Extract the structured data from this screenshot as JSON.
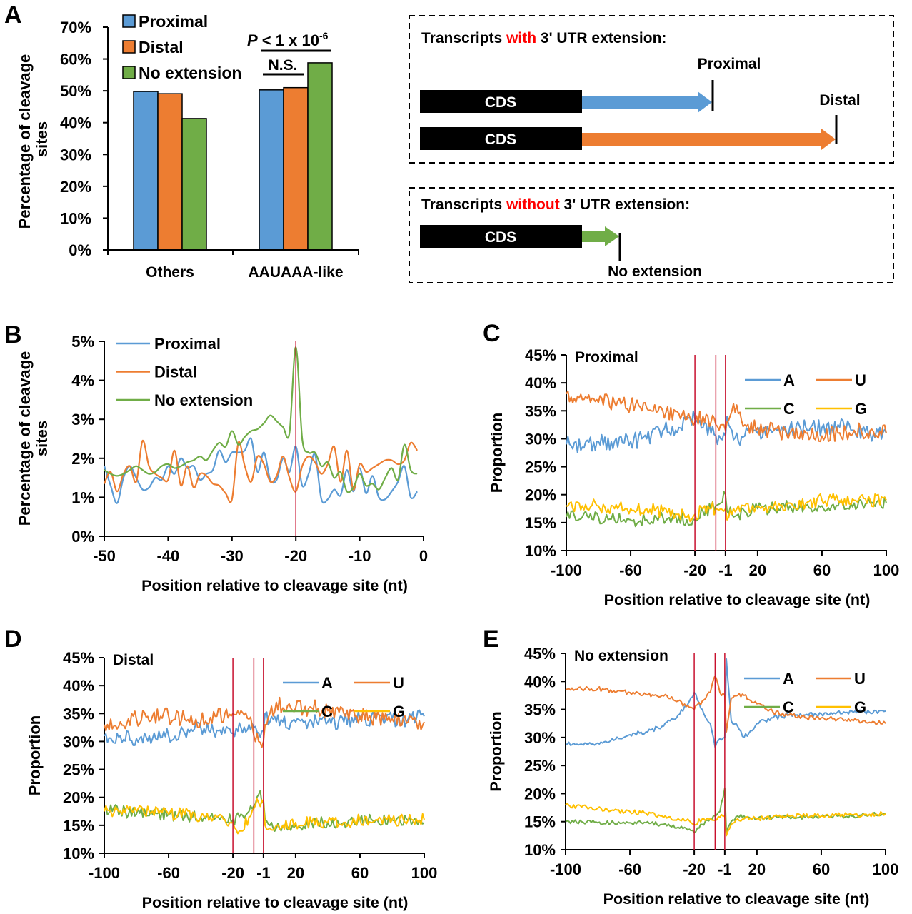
{
  "colors": {
    "blue": "#5b9bd5",
    "orange": "#ed7d31",
    "green": "#70ad47",
    "yellow": "#ffc000",
    "marker_red": "#c8102e",
    "highlight_red": "#ff0000",
    "cds_black": "#000000"
  },
  "chart_data": [
    {
      "panel": "A",
      "type": "bar",
      "title": "",
      "xlabel": "",
      "ylabel": "Percentage of cleavage sites",
      "ylim": [
        0,
        70
      ],
      "yticks": [
        "0%",
        "10%",
        "20%",
        "30%",
        "40%",
        "50%",
        "60%",
        "70%"
      ],
      "categories": [
        "Others",
        "AAUAAA-like"
      ],
      "series": [
        {
          "name": "Proximal",
          "color": "blue",
          "values": [
            49.8,
            50.3
          ]
        },
        {
          "name": "Distal",
          "color": "orange",
          "values": [
            49.1,
            51.0
          ]
        },
        {
          "name": "No extension",
          "color": "green",
          "values": [
            41.3,
            58.8
          ]
        }
      ],
      "legend": "top-left",
      "annotations": [
        {
          "text": "N.S.",
          "category": "AAUAAA-like",
          "between": [
            "Proximal",
            "Distal"
          ]
        },
        {
          "text_italic": "P",
          "text": " < 1 x 10",
          "superscript": "-6",
          "category": "AAUAAA-like",
          "between": [
            "Proximal",
            "No extension"
          ]
        }
      ]
    },
    {
      "panel": "B",
      "type": "line",
      "xlabel": "Position relative to cleavage site (nt)",
      "ylabel": "Percentage of cleavage sites",
      "xlim": [
        -50,
        0
      ],
      "ylim": [
        0,
        5
      ],
      "xticks": [
        "-50",
        "-40",
        "-30",
        "-20",
        "-10",
        "0"
      ],
      "yticks": [
        "0%",
        "1%",
        "2%",
        "3%",
        "4%",
        "5%"
      ],
      "marker_lines": [
        -20
      ],
      "legend": "top-left",
      "x_start": -50,
      "series": [
        {
          "name": "Proximal",
          "color": "blue",
          "values": [
            1.8,
            1.3,
            0.85,
            1.5,
            1.8,
            1.5,
            1.2,
            1.25,
            1.5,
            1.45,
            1.8,
            1.6,
            2.0,
            1.75,
            1.8,
            1.45,
            1.6,
            1.7,
            2.2,
            1.9,
            2.15,
            2.15,
            2.2,
            2.5,
            1.65,
            2.15,
            1.45,
            1.45,
            2.0,
            1.65,
            2.3,
            1.3,
            1.6,
            2.1,
            0.95,
            0.95,
            1.2,
            1.05,
            1.7,
            1.15,
            1.75,
            1.1,
            1.55,
            1.0,
            0.95,
            1.15,
            1.4,
            1.8,
            1.0,
            1.15
          ]
        },
        {
          "name": "Distal",
          "color": "orange",
          "values": [
            1.35,
            1.65,
            1.15,
            1.6,
            1.8,
            1.4,
            2.45,
            1.8,
            1.6,
            1.5,
            1.45,
            2.2,
            1.3,
            1.8,
            1.25,
            1.6,
            1.55,
            1.35,
            1.3,
            1.1,
            0.95,
            2.4,
            1.8,
            1.4,
            2.05,
            1.85,
            1.4,
            1.55,
            2.05,
            1.5,
            1.15,
            1.8,
            2.05,
            1.9,
            1.6,
            1.85,
            2.3,
            1.4,
            2.2,
            1.2,
            1.85,
            1.65,
            1.75,
            1.85,
            1.95,
            1.95,
            1.85,
            1.95,
            2.4,
            2.2
          ]
        },
        {
          "name": "No extension",
          "color": "green",
          "values": [
            1.7,
            1.6,
            1.55,
            1.6,
            1.7,
            1.8,
            1.7,
            1.6,
            1.65,
            1.8,
            1.85,
            1.75,
            1.8,
            1.9,
            1.95,
            2.05,
            1.95,
            2.2,
            2.4,
            2.3,
            2.7,
            2.35,
            2.55,
            2.7,
            2.75,
            2.9,
            3.1,
            2.95,
            2.8,
            2.65,
            4.85,
            2.5,
            2.15,
            2.15,
            1.8,
            1.9,
            1.5,
            1.65,
            1.15,
            1.25,
            1.6,
            1.3,
            1.35,
            1.2,
            1.5,
            1.75,
            1.45,
            2.35,
            1.7,
            1.6
          ]
        }
      ]
    },
    {
      "panel": "C",
      "type": "line",
      "title": "Proximal",
      "xlabel": "Position relative to cleavage site (nt)",
      "ylabel": "Proportion",
      "xlim": [
        -100,
        100
      ],
      "ylim": [
        10,
        45
      ],
      "xticks": [
        "-100",
        "-60",
        "-20",
        "-1",
        "20",
        "60",
        "100"
      ],
      "yticks": [
        "10%",
        "15%",
        "20%",
        "25%",
        "30%",
        "35%",
        "40%",
        "45%"
      ],
      "marker_lines": [
        -20,
        -7,
        -1
      ],
      "legend": "top-right",
      "anchor_positions": [
        -100,
        -90,
        -80,
        -70,
        -60,
        -50,
        -40,
        -30,
        -25,
        -20,
        -15,
        -10,
        -7,
        -4,
        -1,
        1,
        4,
        8,
        12,
        20,
        30,
        40,
        50,
        60,
        70,
        80,
        90,
        100
      ],
      "series": [
        {
          "name": "A",
          "color": "blue",
          "noise": 1.5,
          "values": [
            29,
            28.5,
            29.5,
            29.5,
            29.5,
            30,
            31.5,
            32,
            34,
            33.5,
            32,
            31,
            30.5,
            30,
            30.5,
            34,
            31.5,
            29.5,
            30.5,
            31,
            31.5,
            32,
            32,
            32,
            32.5,
            31.5,
            31,
            31
          ]
        },
        {
          "name": "U",
          "color": "orange",
          "noise": 1.5,
          "values": [
            38,
            37,
            36.5,
            36.5,
            36,
            35.5,
            35,
            34.5,
            33.5,
            33,
            34,
            33,
            32.5,
            32.5,
            31.5,
            33,
            35,
            34.5,
            32.5,
            32,
            31.5,
            31,
            31,
            30.5,
            31,
            31.5,
            31.5,
            31
          ]
        },
        {
          "name": "C",
          "color": "green",
          "noise": 1.2,
          "values": [
            16,
            16,
            16,
            15.5,
            15.5,
            15.5,
            16,
            16,
            15.5,
            15.5,
            17,
            17.5,
            18,
            18.5,
            20,
            17,
            16.5,
            16.5,
            17,
            17.5,
            17.5,
            18,
            18,
            18,
            18,
            18.5,
            18.5,
            18.5
          ]
        },
        {
          "name": "G",
          "color": "yellow",
          "noise": 1.2,
          "values": [
            18,
            18,
            18,
            17.5,
            17.5,
            17.5,
            17,
            16.5,
            16,
            16.5,
            17.5,
            17.5,
            17.5,
            17.5,
            17.5,
            15.5,
            16.5,
            18,
            18,
            18,
            18,
            18.5,
            18.5,
            19,
            19,
            19,
            19,
            19
          ]
        }
      ]
    },
    {
      "panel": "D",
      "type": "line",
      "title": "Distal",
      "xlabel": "Position relative to cleavage site (nt)",
      "ylabel": "Proportion",
      "xlim": [
        -100,
        100
      ],
      "ylim": [
        10,
        45
      ],
      "xticks": [
        "-100",
        "-60",
        "-20",
        "-1",
        "20",
        "60",
        "100"
      ],
      "yticks": [
        "10%",
        "15%",
        "20%",
        "25%",
        "30%",
        "35%",
        "40%",
        "45%"
      ],
      "marker_lines": [
        -20,
        -7,
        -1
      ],
      "legend": "top-right",
      "anchor_positions": [
        -100,
        -90,
        -80,
        -70,
        -60,
        -50,
        -40,
        -30,
        -25,
        -20,
        -15,
        -10,
        -7,
        -4,
        -1,
        1,
        4,
        8,
        12,
        20,
        30,
        40,
        50,
        60,
        70,
        80,
        90,
        100
      ],
      "series": [
        {
          "name": "A",
          "color": "blue",
          "noise": 1.4,
          "values": [
            31,
            31,
            30.5,
            30.5,
            31,
            31.5,
            32.5,
            32,
            31.5,
            31.5,
            32.5,
            33,
            32.5,
            31.5,
            32,
            35,
            33.5,
            33.5,
            33.5,
            33.5,
            33.5,
            33.5,
            33.5,
            34,
            34,
            34,
            34,
            34.5
          ]
        },
        {
          "name": "U",
          "color": "orange",
          "noise": 1.5,
          "values": [
            33,
            33.5,
            34,
            34.5,
            34.5,
            34,
            33.5,
            34.5,
            35,
            35,
            35.5,
            34,
            31,
            30,
            30,
            33,
            35,
            37,
            36,
            36,
            36,
            35.5,
            35,
            34.5,
            34,
            34,
            33.5,
            33.5
          ]
        },
        {
          "name": "C",
          "color": "green",
          "noise": 1.1,
          "values": [
            18,
            17.5,
            17,
            17,
            17,
            16.5,
            16.5,
            16.5,
            16,
            16,
            17,
            17.5,
            18.5,
            20.5,
            19.5,
            16,
            15,
            14.5,
            15,
            15,
            15.5,
            15.5,
            15.5,
            16,
            16,
            16,
            16,
            15.5
          ]
        },
        {
          "name": "G",
          "color": "yellow",
          "noise": 1.1,
          "values": [
            17.5,
            17.5,
            17.5,
            17.5,
            17,
            17,
            16.5,
            16.5,
            16,
            15.5,
            14,
            16.5,
            18,
            19,
            19,
            15,
            14.5,
            15,
            15,
            15.5,
            15.5,
            15.5,
            15.5,
            16,
            16,
            16,
            16,
            16
          ]
        }
      ]
    },
    {
      "panel": "E",
      "type": "line",
      "title": "No extension",
      "xlabel": "Position relative to cleavage site (nt)",
      "ylabel": "Proportion",
      "xlim": [
        -100,
        100
      ],
      "ylim": [
        10,
        45
      ],
      "xticks": [
        "-100",
        "-60",
        "-20",
        "-1",
        "20",
        "60",
        "100"
      ],
      "yticks": [
        "10%",
        "15%",
        "20%",
        "25%",
        "30%",
        "35%",
        "40%",
        "45%"
      ],
      "marker_lines": [
        -20,
        -7,
        -1
      ],
      "legend": "top-right",
      "anchor_positions": [
        -100,
        -90,
        -80,
        -70,
        -60,
        -50,
        -40,
        -30,
        -25,
        -20,
        -15,
        -10,
        -7,
        -4,
        -1,
        1,
        4,
        8,
        12,
        20,
        30,
        40,
        50,
        60,
        70,
        80,
        90,
        100
      ],
      "series": [
        {
          "name": "A",
          "color": "blue",
          "noise": 0.4,
          "values": [
            28.8,
            28.8,
            29,
            29.5,
            30.5,
            31,
            32,
            34,
            35.5,
            38,
            35,
            32.5,
            28.2,
            29.8,
            30,
            44,
            33,
            32,
            30,
            32.5,
            33.5,
            34,
            34,
            34.2,
            34.5,
            34.5,
            34.5,
            34.7
          ]
        },
        {
          "name": "U",
          "color": "orange",
          "noise": 0.4,
          "values": [
            38.5,
            38.6,
            38.7,
            38.3,
            38,
            37.7,
            37.5,
            36.5,
            35.5,
            35,
            36.5,
            38,
            41,
            38,
            37.5,
            31,
            37,
            37.5,
            37.5,
            36,
            34.5,
            34,
            33.5,
            33.5,
            33.2,
            33,
            32.7,
            32.5
          ]
        },
        {
          "name": "C",
          "color": "green",
          "noise": 0.35,
          "values": [
            15,
            15,
            14.8,
            14.8,
            14.8,
            14.8,
            14.5,
            14,
            13.8,
            13,
            14.5,
            15.5,
            16,
            16.8,
            21,
            13,
            15,
            16,
            16,
            15.5,
            15.8,
            15.8,
            15.8,
            16,
            16,
            16,
            16.3,
            16.4
          ]
        },
        {
          "name": "G",
          "color": "yellow",
          "noise": 0.4,
          "values": [
            18,
            17.6,
            17.4,
            17,
            16.8,
            16.5,
            16,
            15.5,
            15.2,
            14.5,
            15.5,
            15.5,
            15.2,
            15.8,
            16,
            12.5,
            14.5,
            15.5,
            15.5,
            15.5,
            15.8,
            16,
            16,
            16,
            16.2,
            16.2,
            16.3,
            16.4
          ]
        }
      ]
    }
  ],
  "panel_labels": [
    "A",
    "B",
    "C",
    "D",
    "E"
  ],
  "schematic": {
    "with_box": {
      "title_prefix": "Transcripts ",
      "title_highlight": "with",
      "title_suffix": " 3' UTR extension:",
      "rows": [
        {
          "cds_label": "CDS",
          "arrow_color": "blue",
          "end_label": "Proximal"
        },
        {
          "cds_label": "CDS",
          "arrow_color": "orange",
          "end_label": "Distal"
        }
      ]
    },
    "without_box": {
      "title_prefix": "Transcripts ",
      "title_highlight": "without",
      "title_suffix": " 3' UTR extension:",
      "rows": [
        {
          "cds_label": "CDS",
          "arrow_color": "green",
          "end_label": "No extension"
        }
      ]
    }
  }
}
